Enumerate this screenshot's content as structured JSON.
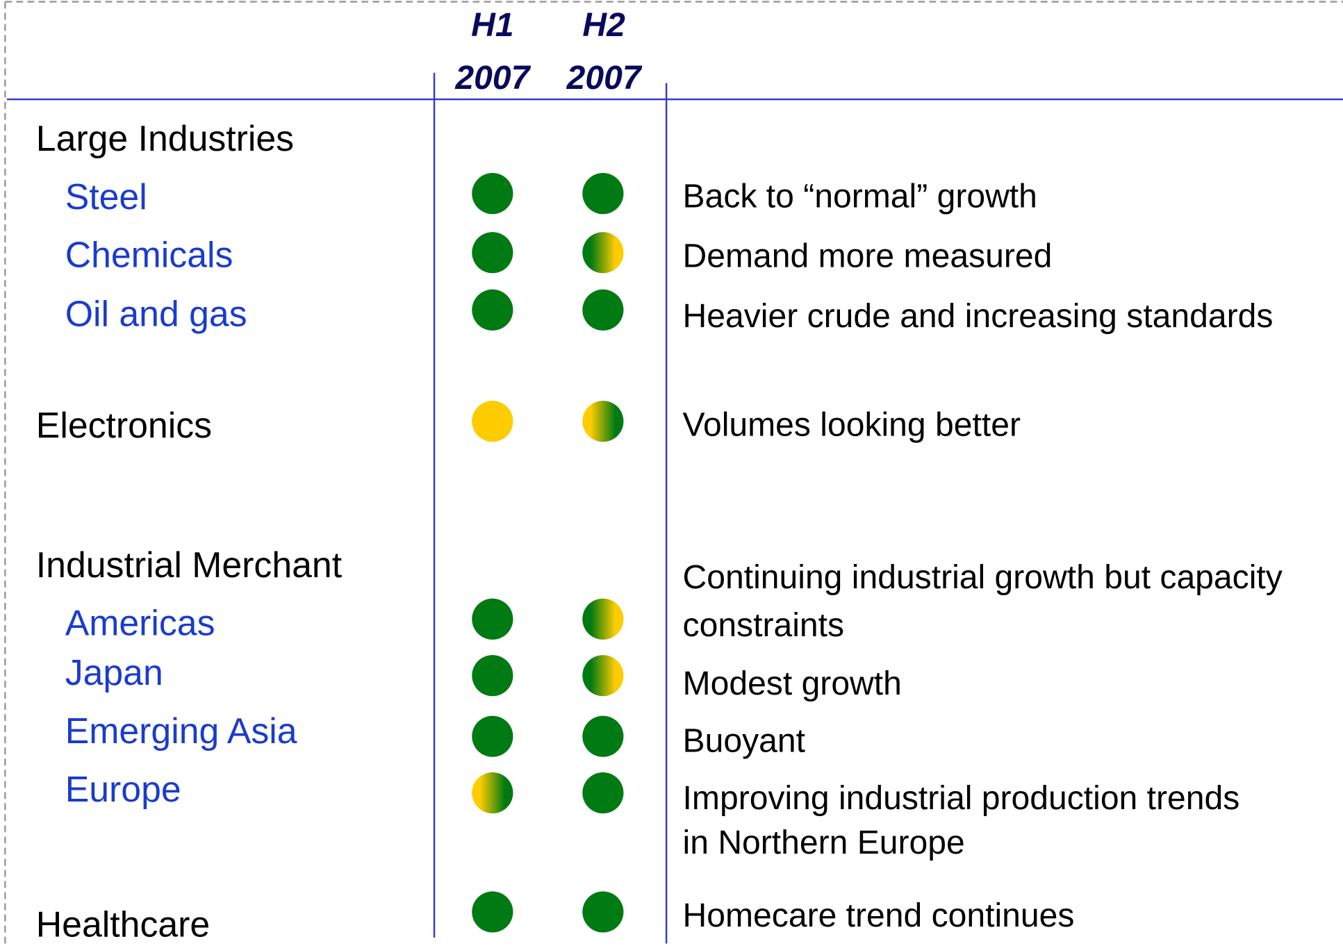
{
  "header": {
    "columns": [
      [
        "H1",
        "2007"
      ],
      [
        "H2",
        "2007"
      ]
    ]
  },
  "colors": {
    "green": "#007a12",
    "yellow": "#ffcc00"
  },
  "sections": [
    {
      "label": "Large Industries",
      "items": [
        {
          "label": "Steel",
          "h1": "green",
          "h2": "green",
          "comment": [
            "Back to “normal” growth"
          ]
        },
        {
          "label": "Chemicals",
          "h1": "green",
          "h2": "green-yellow",
          "comment": [
            "Demand more measured"
          ]
        },
        {
          "label": "Oil and gas",
          "h1": "green",
          "h2": "green",
          "comment": [
            "Heavier crude and increasing standards"
          ]
        }
      ]
    },
    {
      "label": "Electronics",
      "h1": "yellow",
      "h2": "yellow-green",
      "comment": [
        "Volumes looking better"
      ]
    },
    {
      "label": "Industrial Merchant",
      "items": [
        {
          "label": "Americas",
          "h1": "green",
          "h2": "green-yellow",
          "comment": [
            "Continuing industrial growth but capacity",
            "constraints"
          ]
        },
        {
          "label": "Japan",
          "h1": "green",
          "h2": "green-yellow",
          "comment": [
            "Modest growth"
          ]
        },
        {
          "label": "Emerging Asia",
          "h1": "green",
          "h2": "green",
          "comment": [
            "Buoyant"
          ]
        },
        {
          "label": "Europe",
          "h1": "yellow-green",
          "h2": "green",
          "comment": [
            "Improving industrial production trends",
            "in Northern Europe"
          ]
        }
      ]
    },
    {
      "label": "Healthcare",
      "h1": "green",
      "h2": "green",
      "comment": [
        "Homecare trend continues"
      ]
    }
  ]
}
